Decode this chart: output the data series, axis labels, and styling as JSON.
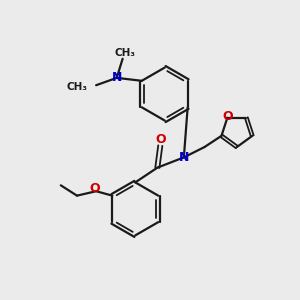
{
  "background_color": "#ebebeb",
  "bond_color": "#1a1a1a",
  "atom_colors": {
    "N": "#0000cc",
    "O": "#cc0000",
    "C": "#1a1a1a"
  },
  "figure_size": [
    3.0,
    3.0
  ],
  "dpi": 100
}
